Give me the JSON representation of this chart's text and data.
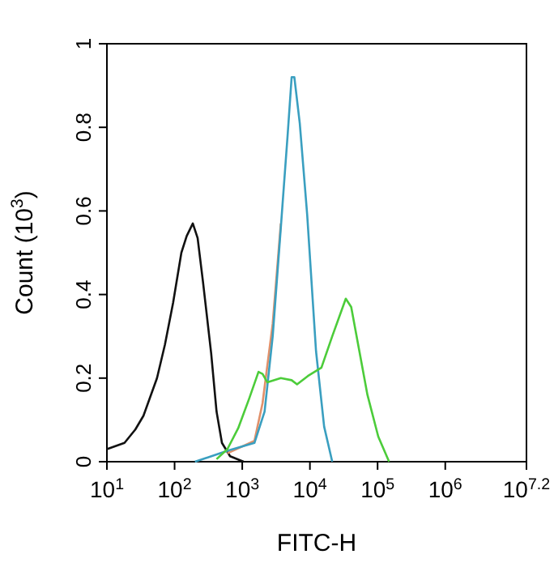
{
  "chart_data": {
    "type": "line",
    "xlabel": "FITC-H",
    "ylabel": "Count (10$^{3}$)",
    "log": "x",
    "xlim": [
      10,
      15848932
    ],
    "xticks": [
      {
        "value": 10,
        "label": "10$^{1}$"
      },
      {
        "value": 100,
        "label": "10$^{2}$"
      },
      {
        "value": 1000,
        "label": "10$^{3}$"
      },
      {
        "value": 10000,
        "label": "10$^{4}$"
      },
      {
        "value": 100000,
        "label": "10$^{5}$"
      },
      {
        "value": 1000000,
        "label": "10$^{6}$"
      },
      {
        "value": 15848932,
        "label": "10$^{7.2}$"
      }
    ],
    "ylim": [
      0,
      1
    ],
    "yticks": [
      0,
      0.2,
      0.4,
      0.6,
      0.8,
      1
    ],
    "grid": false,
    "marker": "none",
    "line_style": "solid",
    "series": [
      {
        "color": "#111111",
        "x": [
          10,
          18.2,
          26.3,
          34.7,
          55,
          72,
          95,
          126,
          151,
          186,
          219,
          263,
          347,
          417,
          501,
          661,
          1047
        ],
        "values": [
          0.03,
          0.045,
          0.077,
          0.11,
          0.2,
          0.28,
          0.38,
          0.5,
          0.54,
          0.57,
          0.535,
          0.43,
          0.26,
          0.12,
          0.045,
          0.013,
          0
        ]
      },
      {
        "color": "#e0906a",
        "x": [
          603,
          1514,
          1995,
          2818,
          3715
        ],
        "values": [
          0.02,
          0.05,
          0.14,
          0.33,
          0.57
        ]
      },
      {
        "color": "#3a9fc0",
        "x": [
          200,
          603,
          1514,
          2138,
          2818,
          3715,
          4677,
          5370,
          5888,
          7079,
          9120,
          12303,
          16218,
          21380
        ],
        "values": [
          0,
          0.026,
          0.045,
          0.12,
          0.3,
          0.56,
          0.78,
          0.92,
          0.92,
          0.81,
          0.59,
          0.265,
          0.084,
          0
        ]
      },
      {
        "color": "#4ccc3a",
        "x": [
          417,
          603,
          871,
          1259,
          1738,
          1995,
          2344,
          3715,
          5370,
          6457,
          9333,
          14791,
          21380,
          33884,
          40738,
          53703,
          70795,
          102329,
          147911
        ],
        "values": [
          0.006,
          0.03,
          0.08,
          0.15,
          0.215,
          0.21,
          0.19,
          0.2,
          0.195,
          0.185,
          0.205,
          0.225,
          0.3,
          0.39,
          0.37,
          0.265,
          0.16,
          0.06,
          0
        ]
      }
    ]
  }
}
